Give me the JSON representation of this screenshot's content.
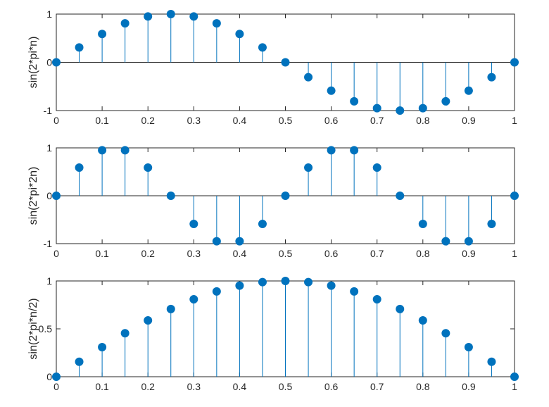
{
  "chart_data": [
    {
      "type": "stem",
      "ylabel": "sin(2*pi*n)",
      "xlim": [
        0,
        1
      ],
      "ylim": [
        -1,
        1
      ],
      "xticks": [
        "0",
        "0.1",
        "0.2",
        "0.3",
        "0.4",
        "0.5",
        "0.6",
        "0.7",
        "0.8",
        "0.9",
        "1"
      ],
      "yticks": [
        "-1",
        "0",
        "1"
      ],
      "x": [
        0,
        0.05,
        0.1,
        0.15,
        0.2,
        0.25,
        0.3,
        0.35,
        0.4,
        0.45,
        0.5,
        0.55,
        0.6,
        0.65,
        0.7,
        0.75,
        0.8,
        0.85,
        0.9,
        0.95,
        1
      ],
      "values": [
        0,
        0.309,
        0.588,
        0.809,
        0.951,
        1,
        0.951,
        0.809,
        0.588,
        0.309,
        0,
        -0.309,
        -0.588,
        -0.809,
        -0.951,
        -1,
        -0.951,
        -0.809,
        -0.588,
        -0.309,
        0
      ],
      "color": "#0072BD"
    },
    {
      "type": "stem",
      "ylabel": "sin(2*pi*2n)",
      "xlim": [
        0,
        1
      ],
      "ylim": [
        -1,
        1
      ],
      "xticks": [
        "0",
        "0.1",
        "0.2",
        "0.3",
        "0.4",
        "0.5",
        "0.6",
        "0.7",
        "0.8",
        "0.9",
        "1"
      ],
      "yticks": [
        "-1",
        "0",
        "1"
      ],
      "x": [
        0,
        0.05,
        0.1,
        0.15,
        0.2,
        0.25,
        0.3,
        0.35,
        0.4,
        0.45,
        0.5,
        0.55,
        0.6,
        0.65,
        0.7,
        0.75,
        0.8,
        0.85,
        0.9,
        0.95,
        1
      ],
      "values": [
        0,
        0.588,
        0.951,
        0.951,
        0.588,
        0,
        -0.588,
        -0.951,
        -0.951,
        -0.588,
        0,
        0.588,
        0.951,
        0.951,
        0.588,
        0,
        -0.588,
        -0.951,
        -0.951,
        -0.588,
        0
      ],
      "color": "#0072BD"
    },
    {
      "type": "stem",
      "ylabel": "sin(2*pi*n/2)",
      "xlim": [
        0,
        1
      ],
      "ylim": [
        0,
        1
      ],
      "xticks": [
        "0",
        "0.1",
        "0.2",
        "0.3",
        "0.4",
        "0.5",
        "0.6",
        "0.7",
        "0.8",
        "0.9",
        "1"
      ],
      "yticks": [
        "0",
        "0.5",
        "1"
      ],
      "x": [
        0,
        0.05,
        0.1,
        0.15,
        0.2,
        0.25,
        0.3,
        0.35,
        0.4,
        0.45,
        0.5,
        0.55,
        0.6,
        0.65,
        0.7,
        0.75,
        0.8,
        0.85,
        0.9,
        0.95,
        1
      ],
      "values": [
        0,
        0.156,
        0.309,
        0.454,
        0.588,
        0.707,
        0.809,
        0.891,
        0.951,
        0.988,
        1,
        0.988,
        0.951,
        0.891,
        0.809,
        0.707,
        0.588,
        0.454,
        0.309,
        0.156,
        0
      ],
      "color": "#0072BD"
    }
  ]
}
